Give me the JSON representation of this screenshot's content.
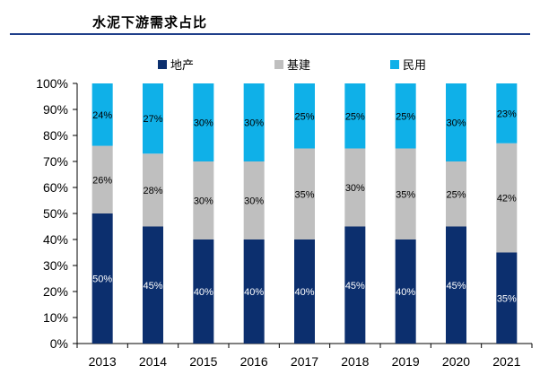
{
  "header": {
    "title": "水泥下游需求占比"
  },
  "colors": {
    "rule": "#1f3f8a"
  },
  "chart_data": {
    "type": "bar",
    "stacked": true,
    "title": "",
    "xlabel": "",
    "ylabel": "",
    "ylim": [
      0,
      100
    ],
    "y_ticks": [
      "0%",
      "10%",
      "20%",
      "30%",
      "40%",
      "50%",
      "60%",
      "70%",
      "80%",
      "90%",
      "100%"
    ],
    "categories": [
      "2013",
      "2014",
      "2015",
      "2016",
      "2017",
      "2018",
      "2019",
      "2020",
      "2021"
    ],
    "legend_position": "top",
    "grid": false,
    "series": [
      {
        "name": "地产",
        "color": "#0c2f6e",
        "label_color": "#ffffff",
        "values": [
          50,
          45,
          40,
          40,
          40,
          45,
          40,
          45,
          35
        ]
      },
      {
        "name": "基建",
        "color": "#bfbfbf",
        "label_color": "#000000",
        "values": [
          26,
          28,
          30,
          30,
          35,
          30,
          35,
          25,
          42
        ]
      },
      {
        "name": "民用",
        "color": "#0fb0e8",
        "label_color": "#000000",
        "values": [
          24,
          27,
          30,
          30,
          25,
          25,
          25,
          30,
          23
        ]
      }
    ]
  }
}
